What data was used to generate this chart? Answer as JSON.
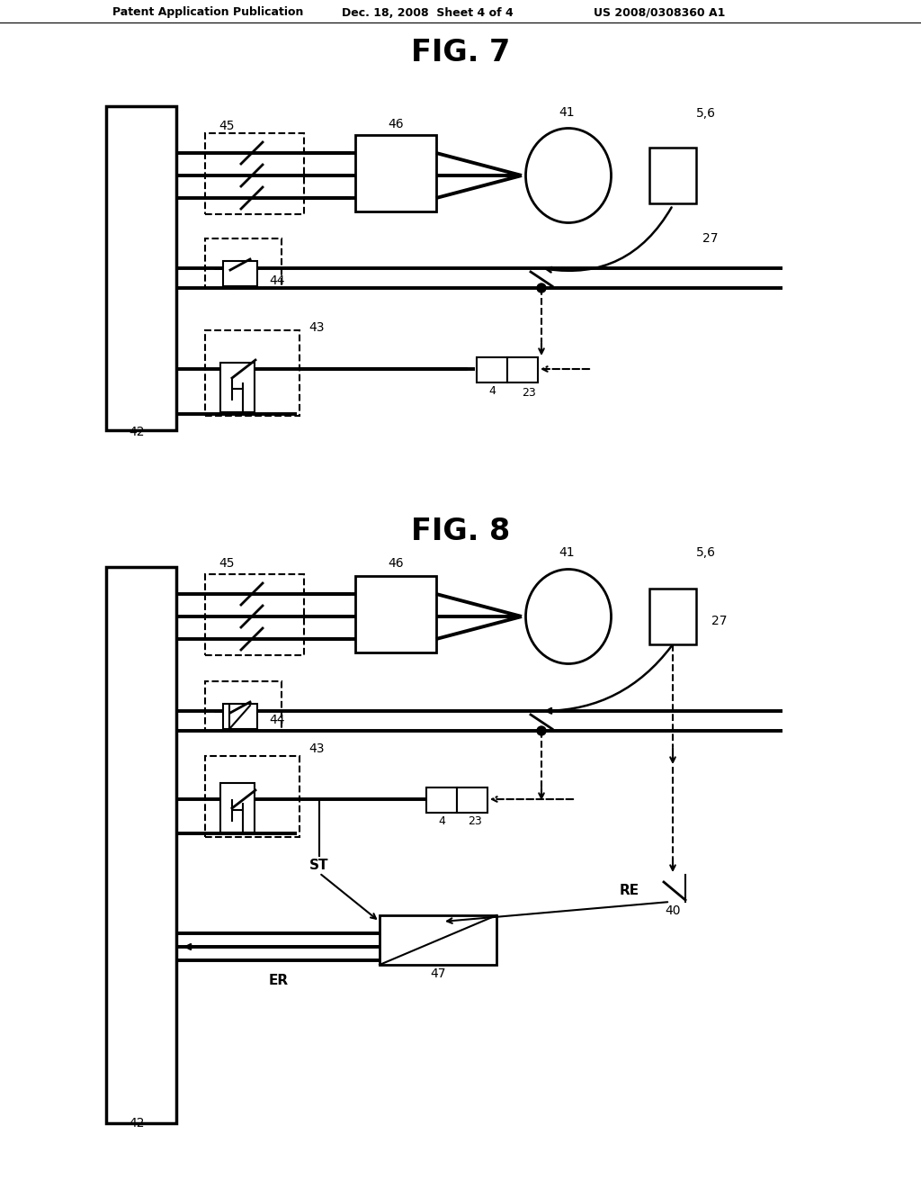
{
  "header_left": "Patent Application Publication",
  "header_mid": "Dec. 18, 2008  Sheet 4 of 4",
  "header_right": "US 2008/0308360 A1",
  "fig7_title": "FIG. 7",
  "fig8_title": "FIG. 8",
  "bg_color": "#ffffff"
}
